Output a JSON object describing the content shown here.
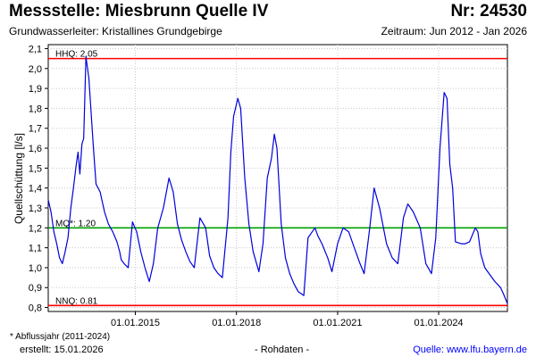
{
  "header": {
    "title": "Messstelle: Miesbrunn Quelle IV",
    "nr": "Nr: 24530",
    "subtitle": "Grundwasserleiter: Kristallines Grundgebirge",
    "period": "Zeitraum: Jun 2012 - Jan 2026"
  },
  "footer": {
    "note": "* Abflussjahr (2011-2024)",
    "created": "erstellt:  15.01.2026",
    "raw": "- Rohdaten -",
    "source": "Quelle: www.lfu.bayern.de"
  },
  "colors": {
    "series": "#0000dd",
    "hhq": "#ff0000",
    "nnq": "#ff0000",
    "mq": "#00a000",
    "grid": "#c8c8c8"
  },
  "chart_data": {
    "type": "line",
    "ylabel": "Quellschüttung [l/s]",
    "ylim": [
      0.78,
      2.12
    ],
    "xlim": [
      "2012-06-01",
      "2026-01-15"
    ],
    "yticks": [
      "2,1",
      "2,0",
      "1,9",
      "1,8",
      "1,7",
      "1,6",
      "1,5",
      "1,4",
      "1,3",
      "1,2",
      "1,1",
      "1,0",
      "0,9",
      "0,8"
    ],
    "ytick_values": [
      2.1,
      2.0,
      1.9,
      1.8,
      1.7,
      1.6,
      1.5,
      1.4,
      1.3,
      1.2,
      1.1,
      1.0,
      0.9,
      0.8
    ],
    "xticks": [
      "01.01.2015",
      "01.01.2018",
      "01.01.2021",
      "01.01.2024"
    ],
    "xtick_values": [
      "2015-01-01",
      "2018-01-01",
      "2021-01-01",
      "2024-01-01"
    ],
    "grid": true,
    "reference_lines": [
      {
        "label": "HHQ: 2.05",
        "value": 2.05,
        "color": "#ff0000"
      },
      {
        "label": "MQ*: 1.20",
        "value": 1.2,
        "color": "#00a000"
      },
      {
        "label": "NNQ: 0.81",
        "value": 0.81,
        "color": "#ff0000"
      }
    ],
    "series": [
      {
        "x": [
          "2012-06-01",
          "2012-07-01",
          "2012-08-01",
          "2012-09-01",
          "2012-10-01",
          "2012-11-01",
          "2012-12-01",
          "2013-01-01",
          "2013-02-01",
          "2013-03-01",
          "2013-04-01",
          "2013-04-20",
          "2013-05-10",
          "2013-06-01",
          "2013-06-20",
          "2013-07-15",
          "2013-08-15",
          "2013-10-01",
          "2013-11-01",
          "2013-12-15",
          "2014-02-01",
          "2014-03-15",
          "2014-05-01",
          "2014-06-15",
          "2014-07-15",
          "2014-08-01",
          "2014-09-01",
          "2014-10-15",
          "2014-12-01",
          "2015-01-15",
          "2015-03-01",
          "2015-04-15",
          "2015-06-01",
          "2015-07-15",
          "2015-09-01",
          "2015-11-01",
          "2016-01-01",
          "2016-02-15",
          "2016-04-01",
          "2016-05-15",
          "2016-07-01",
          "2016-08-15",
          "2016-10-01",
          "2016-12-01",
          "2017-02-01",
          "2017-03-15",
          "2017-05-01",
          "2017-06-15",
          "2017-08-01",
          "2017-10-01",
          "2017-11-01",
          "2017-12-01",
          "2018-01-15",
          "2018-02-15",
          "2018-04-01",
          "2018-05-15",
          "2018-07-01",
          "2018-09-01",
          "2018-10-15",
          "2018-12-01",
          "2019-01-15",
          "2019-02-15",
          "2019-03-15",
          "2019-05-01",
          "2019-06-15",
          "2019-08-01",
          "2019-09-15",
          "2019-11-01",
          "2020-01-01",
          "2020-02-15",
          "2020-04-01",
          "2020-05-01",
          "2020-06-01",
          "2020-07-15",
          "2020-09-15",
          "2020-11-01",
          "2021-01-01",
          "2021-03-01",
          "2021-05-01",
          "2021-07-01",
          "2021-09-01",
          "2021-10-15",
          "2021-12-15",
          "2022-02-01",
          "2022-04-01",
          "2022-06-15",
          "2022-08-15",
          "2022-10-15",
          "2022-12-15",
          "2023-02-01",
          "2023-04-01",
          "2023-06-15",
          "2023-08-15",
          "2023-10-15",
          "2023-12-01",
          "2024-01-15",
          "2024-03-01",
          "2024-04-01",
          "2024-05-01",
          "2024-06-01",
          "2024-07-01",
          "2024-09-01",
          "2024-10-15",
          "2024-12-01",
          "2025-02-01",
          "2025-03-01",
          "2025-04-01",
          "2025-05-15",
          "2025-07-01",
          "2025-09-01",
          "2025-11-01",
          "2025-12-01",
          "2026-01-15"
        ],
        "y": [
          1.34,
          1.28,
          1.18,
          1.12,
          1.05,
          1.02,
          1.08,
          1.15,
          1.3,
          1.4,
          1.52,
          1.58,
          1.47,
          1.62,
          1.65,
          2.06,
          1.95,
          1.62,
          1.42,
          1.38,
          1.28,
          1.22,
          1.18,
          1.13,
          1.08,
          1.04,
          1.02,
          1.0,
          1.23,
          1.18,
          1.08,
          1.0,
          0.93,
          1.02,
          1.2,
          1.3,
          1.45,
          1.38,
          1.22,
          1.14,
          1.08,
          1.03,
          1.0,
          1.25,
          1.2,
          1.06,
          1.0,
          0.97,
          0.95,
          1.25,
          1.58,
          1.76,
          1.85,
          1.8,
          1.45,
          1.22,
          1.08,
          0.98,
          1.12,
          1.45,
          1.55,
          1.67,
          1.6,
          1.22,
          1.05,
          0.97,
          0.92,
          0.88,
          0.86,
          1.15,
          1.18,
          1.2,
          1.16,
          1.12,
          1.05,
          0.98,
          1.12,
          1.2,
          1.18,
          1.1,
          1.02,
          0.97,
          1.2,
          1.4,
          1.3,
          1.12,
          1.05,
          1.02,
          1.25,
          1.32,
          1.28,
          1.2,
          1.02,
          0.97,
          1.15,
          1.6,
          1.88,
          1.85,
          1.52,
          1.4,
          1.13,
          1.12,
          1.12,
          1.13,
          1.2,
          1.18,
          1.07,
          1.0,
          0.97,
          0.93,
          0.9,
          0.87,
          0.82
        ]
      }
    ]
  }
}
